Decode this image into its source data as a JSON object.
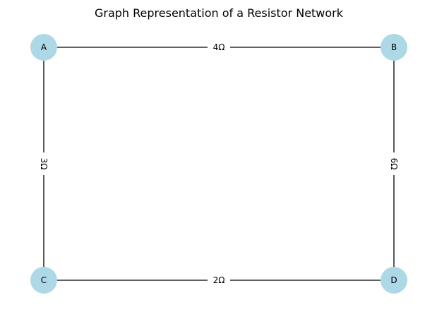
{
  "title": "Graph Representation of a Resistor Network",
  "colors": {
    "node_fill": "#add8e6",
    "edge": "#000000",
    "text": "#000000",
    "background": "#ffffff"
  },
  "nodes": [
    {
      "id": "A",
      "label": "A"
    },
    {
      "id": "B",
      "label": "B"
    },
    {
      "id": "C",
      "label": "C"
    },
    {
      "id": "D",
      "label": "D"
    }
  ],
  "edges": [
    {
      "from": "A",
      "to": "B",
      "label": "4Ω"
    },
    {
      "from": "A",
      "to": "C",
      "label": "3Ω"
    },
    {
      "from": "B",
      "to": "D",
      "label": "6Ω"
    },
    {
      "from": "C",
      "to": "D",
      "label": "2Ω"
    }
  ]
}
